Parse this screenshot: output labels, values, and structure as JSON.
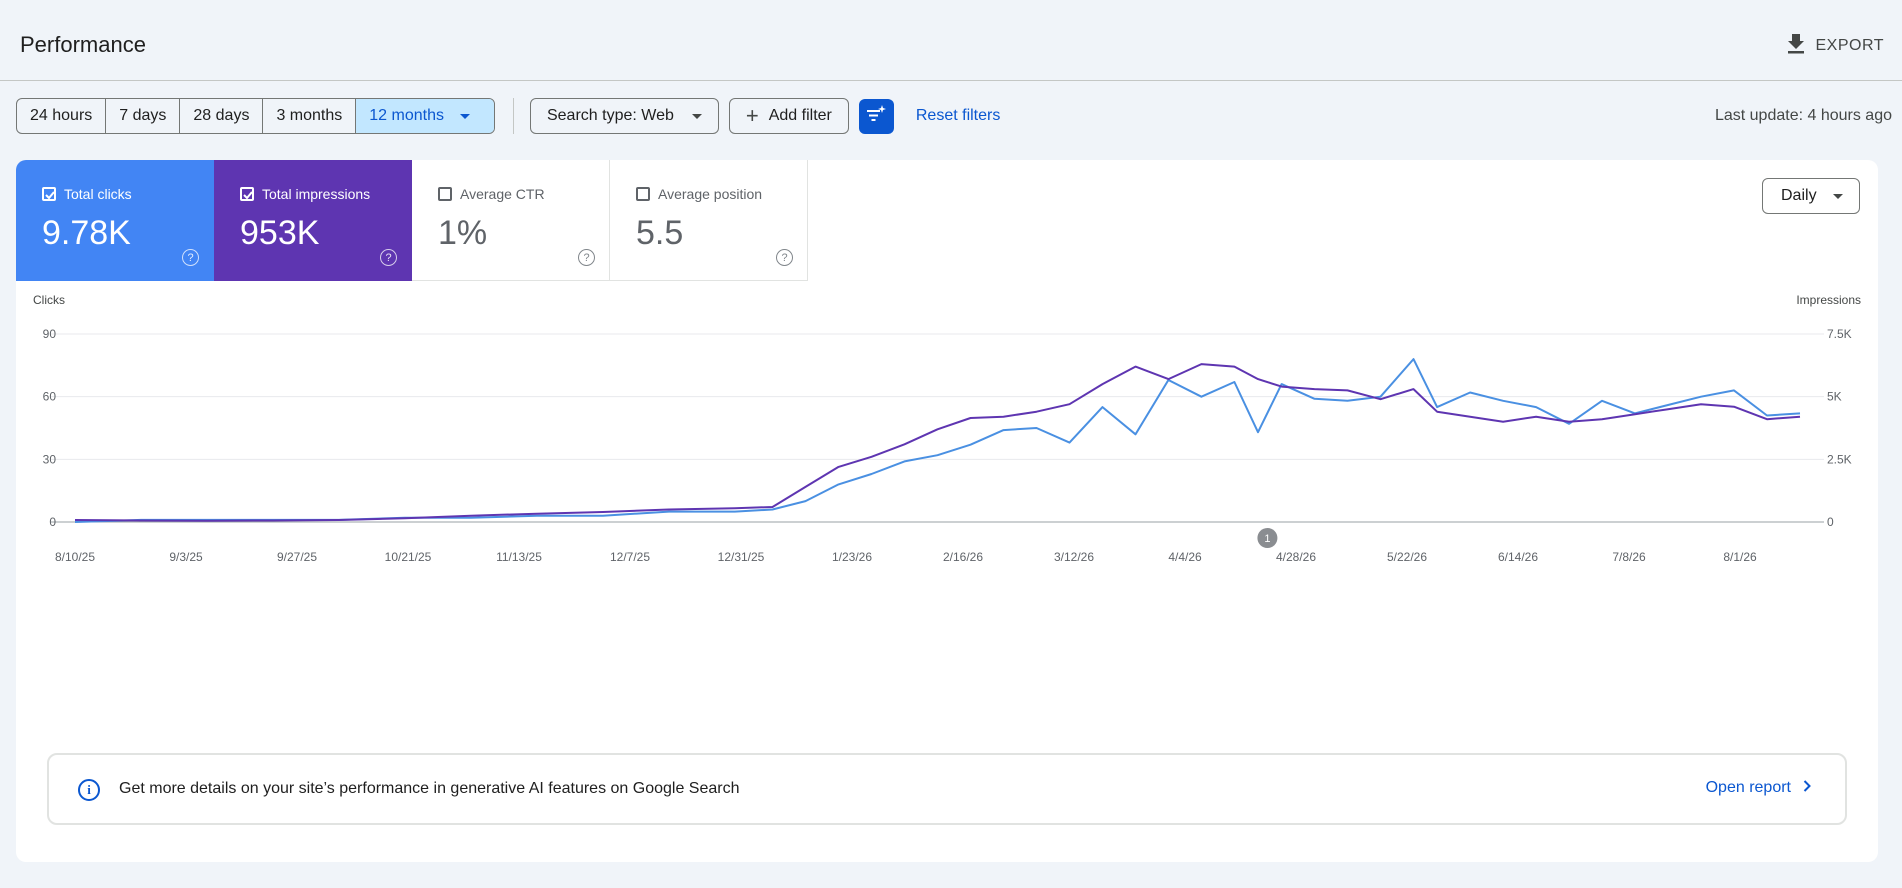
{
  "header": {
    "title": "Performance",
    "export_label": "EXPORT"
  },
  "toolbar": {
    "ranges": [
      {
        "label": "24 hours",
        "active": false
      },
      {
        "label": "7 days",
        "active": false
      },
      {
        "label": "28 days",
        "active": false
      },
      {
        "label": "3 months",
        "active": false
      },
      {
        "label": "12 months",
        "active": true
      }
    ],
    "search_type_label": "Search type: Web",
    "add_filter_label": "Add filter",
    "reset_label": "Reset filters",
    "last_update": "Last update: 4 hours ago"
  },
  "metrics": [
    {
      "label": "Total clicks",
      "value": "9.78K",
      "checked": true
    },
    {
      "label": "Total impressions",
      "value": "953K",
      "checked": true
    },
    {
      "label": "Average CTR",
      "value": "1%",
      "checked": false
    },
    {
      "label": "Average position",
      "value": "5.5",
      "checked": false
    }
  ],
  "granularity": "Daily",
  "chart_data": {
    "type": "line",
    "ylabel_left": "Clicks",
    "ylabel_right": "Impressions",
    "left_ticks": [
      "0",
      "30",
      "60",
      "90"
    ],
    "right_ticks": [
      "0",
      "2.5K",
      "5K",
      "7.5K"
    ],
    "ylim_left": [
      0,
      90
    ],
    "ylim_right": [
      0,
      7500
    ],
    "xlim": [
      "2025-08-10",
      "2026-08-11"
    ],
    "x_tick_labels": [
      "8/10/25",
      "9/3/25",
      "9/27/25",
      "10/21/25",
      "11/13/25",
      "12/7/25",
      "12/31/25",
      "1/23/26",
      "2/16/26",
      "3/12/26",
      "4/4/26",
      "4/28/26",
      "5/22/26",
      "6/14/26",
      "7/8/26",
      "8/1/26"
    ],
    "annotation": {
      "date": "2026-04-20",
      "label": "1"
    },
    "grid": true,
    "colors": {
      "clicks": "#4a90e2",
      "impressions": "#5e35b1"
    },
    "series": [
      {
        "name": "Total clicks",
        "axis": "left",
        "x": [
          "2025-08-10",
          "2025-08-24",
          "2025-09-07",
          "2025-09-21",
          "2025-10-05",
          "2025-10-19",
          "2025-11-02",
          "2025-11-16",
          "2025-11-30",
          "2025-12-14",
          "2025-12-28",
          "2026-01-05",
          "2026-01-12",
          "2026-01-19",
          "2026-01-26",
          "2026-02-02",
          "2026-02-09",
          "2026-02-16",
          "2026-02-23",
          "2026-03-02",
          "2026-03-09",
          "2026-03-16",
          "2026-03-23",
          "2026-03-30",
          "2026-04-06",
          "2026-04-13",
          "2026-04-18",
          "2026-04-23",
          "2026-04-30",
          "2026-05-07",
          "2026-05-14",
          "2026-05-21",
          "2026-05-26",
          "2026-06-02",
          "2026-06-09",
          "2026-06-16",
          "2026-06-23",
          "2026-06-30",
          "2026-07-07",
          "2026-07-14",
          "2026-07-21",
          "2026-07-28",
          "2026-08-04",
          "2026-08-11"
        ],
        "y": [
          0,
          1,
          1,
          1,
          1,
          2,
          2,
          3,
          3,
          5,
          5,
          6,
          10,
          18,
          23,
          29,
          32,
          37,
          44,
          45,
          38,
          55,
          42,
          68,
          60,
          67,
          43,
          66,
          59,
          58,
          60,
          78,
          55,
          62,
          58,
          55,
          47,
          58,
          52,
          56,
          60,
          63,
          51,
          52
        ]
      },
      {
        "name": "Total impressions",
        "axis": "right",
        "x": [
          "2025-08-10",
          "2025-08-24",
          "2025-09-07",
          "2025-09-21",
          "2025-10-05",
          "2025-10-19",
          "2025-11-02",
          "2025-11-16",
          "2025-11-30",
          "2025-12-14",
          "2025-12-28",
          "2026-01-05",
          "2026-01-12",
          "2026-01-19",
          "2026-01-26",
          "2026-02-02",
          "2026-02-09",
          "2026-02-16",
          "2026-02-23",
          "2026-03-02",
          "2026-03-09",
          "2026-03-16",
          "2026-03-23",
          "2026-03-30",
          "2026-04-06",
          "2026-04-13",
          "2026-04-18",
          "2026-04-23",
          "2026-04-30",
          "2026-05-07",
          "2026-05-14",
          "2026-05-21",
          "2026-05-26",
          "2026-06-02",
          "2026-06-09",
          "2026-06-16",
          "2026-06-23",
          "2026-06-30",
          "2026-07-07",
          "2026-07-14",
          "2026-07-21",
          "2026-07-28",
          "2026-08-04",
          "2026-08-11"
        ],
        "y": [
          80,
          60,
          50,
          60,
          80,
          150,
          250,
          330,
          400,
          500,
          550,
          600,
          1400,
          2200,
          2600,
          3100,
          3700,
          4150,
          4200,
          4400,
          4700,
          5500,
          6200,
          5700,
          6300,
          6200,
          5700,
          5400,
          5300,
          5250,
          4900,
          5300,
          4400,
          4200,
          4000,
          4200,
          4000,
          4100,
          4300,
          4500,
          4700,
          4600,
          4100,
          4200
        ]
      }
    ]
  },
  "banner": {
    "message": "Get more details on your site’s performance in generative AI features on Google Search",
    "link_label": "Open report"
  }
}
